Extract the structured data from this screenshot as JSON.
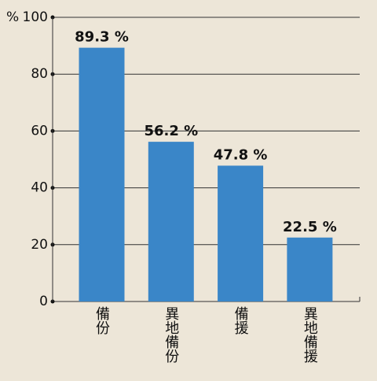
{
  "chart_data": {
    "type": "bar",
    "y_label": "%",
    "categories": [
      "備份",
      "異地備份",
      "備援",
      "異地備援"
    ],
    "values": [
      89.3,
      56.2,
      47.8,
      22.5
    ],
    "value_labels": [
      "89.3 %",
      "56.2 %",
      "47.8 %",
      "22.5 %"
    ],
    "color": "#3a86c8",
    "ylim": [
      0,
      100
    ],
    "yticks": [
      0,
      20,
      40,
      60,
      80,
      100
    ],
    "grid": true
  }
}
